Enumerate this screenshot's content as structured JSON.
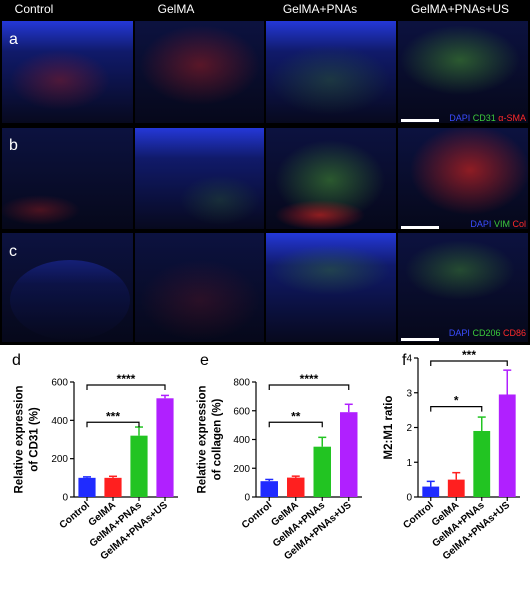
{
  "figure": {
    "columns": [
      "Control",
      "GelMA",
      "GelMA+PNAs",
      "GelMA+PNAs+US"
    ],
    "rows": [
      {
        "letter": "a",
        "stains": [
          "DAPI",
          "CD31",
          "α-SMA"
        ]
      },
      {
        "letter": "b",
        "stains": [
          "DAPI",
          "VIM",
          "Col"
        ]
      },
      {
        "letter": "c",
        "stains": [
          "DAPI",
          "CD206",
          "CD86"
        ]
      }
    ]
  },
  "chart_data": [
    {
      "type": "bar",
      "panel": "d",
      "ylabel": [
        "Relative expression",
        "of CD31 (%)"
      ],
      "categories": [
        "Control",
        "GelMA",
        "GelMA+PNAs",
        "GelMA+PNAs+US"
      ],
      "values": [
        100,
        100,
        320,
        515
      ],
      "errors": [
        5,
        8,
        45,
        15
      ],
      "colors": [
        "#1f2bff",
        "#ff1f1f",
        "#22c422",
        "#b020ff"
      ],
      "ylim": [
        0,
        600
      ],
      "yticks": [
        0,
        200,
        400,
        600
      ],
      "significance": [
        {
          "from": 0,
          "to": 2,
          "label": "***"
        },
        {
          "from": 0,
          "to": 3,
          "label": "****"
        }
      ]
    },
    {
      "type": "bar",
      "panel": "e",
      "ylabel": [
        "Relative expression",
        "of collagen (%)"
      ],
      "categories": [
        "Control",
        "GelMA",
        "GelMA+PNAs",
        "GelMA+PNAs+US"
      ],
      "values": [
        110,
        135,
        350,
        590
      ],
      "errors": [
        12,
        10,
        65,
        55
      ],
      "colors": [
        "#1f2bff",
        "#ff1f1f",
        "#22c422",
        "#b020ff"
      ],
      "ylim": [
        0,
        800
      ],
      "yticks": [
        0,
        200,
        400,
        600,
        800
      ],
      "significance": [
        {
          "from": 0,
          "to": 2,
          "label": "**"
        },
        {
          "from": 0,
          "to": 3,
          "label": "****"
        }
      ]
    },
    {
      "type": "bar",
      "panel": "f",
      "ylabel": [
        "M2:M1 ratio"
      ],
      "categories": [
        "Control",
        "GelMA",
        "GelMA+PNAs",
        "GelMA+PNAs+US"
      ],
      "values": [
        0.3,
        0.5,
        1.9,
        2.95
      ],
      "errors": [
        0.15,
        0.2,
        0.4,
        0.7
      ],
      "colors": [
        "#1f2bff",
        "#ff1f1f",
        "#22c422",
        "#b020ff"
      ],
      "ylim": [
        0,
        4
      ],
      "yticks": [
        0,
        1,
        2,
        3,
        4
      ],
      "significance": [
        {
          "from": 0,
          "to": 2,
          "label": "*"
        },
        {
          "from": 0,
          "to": 3,
          "label": "***"
        }
      ]
    }
  ]
}
